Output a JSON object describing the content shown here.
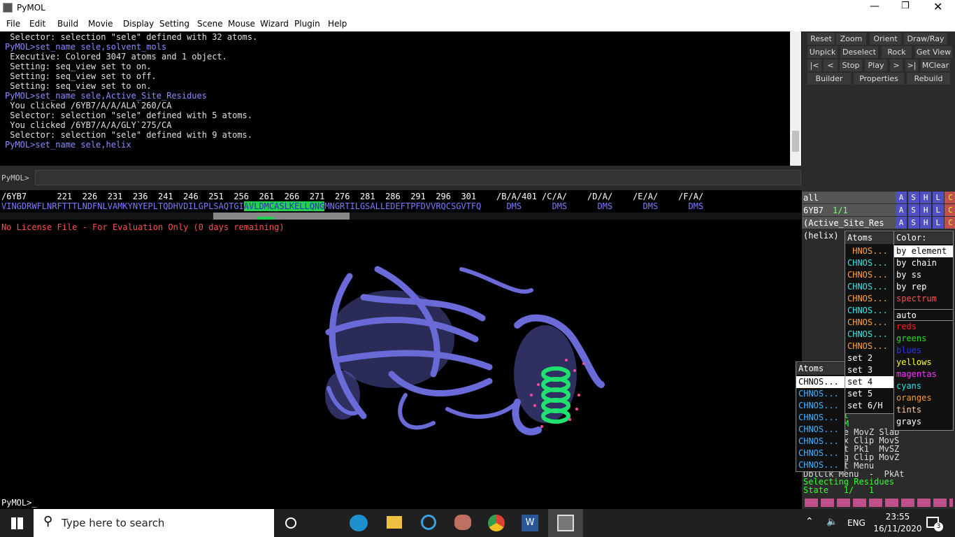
{
  "window": {
    "title": "PyMOL"
  },
  "menu": [
    "File",
    "Edit",
    "Build",
    "Movie",
    "Display",
    "Setting",
    "Scene",
    "Mouse",
    "Wizard",
    "Plugin",
    "Help"
  ],
  "console": {
    "lines": [
      " Selector: selection \"sele\" defined with 32 atoms.",
      "PyMOL>set_name sele,solvent_mols",
      " Executive: Colored 3047 atoms and 1 object.",
      " Setting: seq_view set to on.",
      " Setting: seq_view set to off.",
      " Setting: seq_view set to on.",
      "PyMOL>set_name sele,Active_Site_Residues",
      " You clicked /6YB7/A/A/ALA`260/CA",
      " Selector: selection \"sele\" defined with 5 atoms.",
      " You clicked /6YB7/A/A/GLY`275/CA",
      " Selector: selection \"sele\" defined with 9 atoms.",
      "PyMOL>set_name sele,helix"
    ],
    "prompt": "PyMOL>"
  },
  "buttons": [
    [
      "Reset",
      "Zoom",
      "Orient",
      "Draw/Ray"
    ],
    [
      "Unpick",
      "Deselect",
      "Rock",
      "Get View"
    ],
    [
      "|<",
      "<",
      "Stop",
      "Play",
      ">",
      ">|",
      "MClear"
    ],
    [
      "Builder",
      "Properties",
      "Rebuild"
    ]
  ],
  "sequence": {
    "header": "/6YB7      221  226  231  236  241  246  251  256  261  266  271  276  281  286  291  296  301    /B/A/401 /C/A/    /D/A/    /E/A/    /F/A/",
    "before": "VINGDRWFLNRFTTTLNDFNLVAMKYNYEPLTQDHVDILGPLSAQTGI",
    "highlight": "AVLDMCASLKELLQNG",
    "after": "MNGRTILGSALLEDEFTPFDVVRQCSGVTFQ     DMS      DMS      DMS      DMS      DMS"
  },
  "license": "No License File - For Evaluation Only (0 days remaining)",
  "objects": [
    {
      "name": "all"
    },
    {
      "name": "6YB7",
      "state": "1/1"
    },
    {
      "name": "(Active_Site_Res"
    },
    {
      "name": "(helix)"
    }
  ],
  "object_buttons": [
    "A",
    "S",
    "H",
    "L",
    "C"
  ],
  "atoms_menu": {
    "title": "Atoms",
    "items": [
      " HNOS...",
      "CHNOS...",
      "CHNOS...",
      "CHNOS...",
      "CHNOS...",
      "CHNOS...",
      "CHNOS...",
      "CHNOS...",
      "CHNOS...",
      "set 2",
      "set 3",
      "set 4",
      "set 5",
      "set 6/H"
    ]
  },
  "color_menu": {
    "title": "Color:",
    "items": [
      {
        "label": "by element",
        "color": "#ffffff"
      },
      {
        "label": "by chain",
        "color": "#ffffff"
      },
      {
        "label": "by ss",
        "color": "#ffffff"
      },
      {
        "label": "by rep",
        "color": "#ffffff"
      },
      {
        "label": "spectrum",
        "color": "#ff5050"
      },
      {
        "label": "auto",
        "color": "#ffffff"
      },
      {
        "label": "reds",
        "color": "#ff2020"
      },
      {
        "label": "greens",
        "color": "#20e020"
      },
      {
        "label": "blues",
        "color": "#3030ff"
      },
      {
        "label": "yellows",
        "color": "#ffff20"
      },
      {
        "label": "magentas",
        "color": "#ff30ff"
      },
      {
        "label": "cyans",
        "color": "#20e0e0"
      },
      {
        "label": "oranges",
        "color": "#ff9a20"
      },
      {
        "label": "tints",
        "color": "#ffd0a0"
      },
      {
        "label": "grays",
        "color": "#ffffff"
      }
    ]
  },
  "atoms_menu2": {
    "title": "Atoms",
    "items": [
      "CHNOS...",
      "CHNOS...",
      "CHNOS...",
      "CHNOS...",
      "CHNOS...",
      "CHNOS...",
      "CHNOS...",
      "CHNOS..."
    ]
  },
  "mouse_panel": [
    "ode 3-But",
    ":  L    M",
    "Rota Move MovZ Slab",
    "+Box -Box Clip MovS",
    "Move PkAt Pk1  MvSZ",
    "Sele Orig Clip MovZ",
    "+/-  Cent Menu",
    "DblClk Menu  -  PkAt"
  ],
  "status": {
    "mode": "Selecting Residues",
    "state": "State   1/   1"
  },
  "command": "PyMOL>_",
  "taskbar": {
    "search": "Type here to search",
    "lang": "ENG",
    "time": "23:55",
    "date": "16/11/2020",
    "notifications": "3"
  }
}
